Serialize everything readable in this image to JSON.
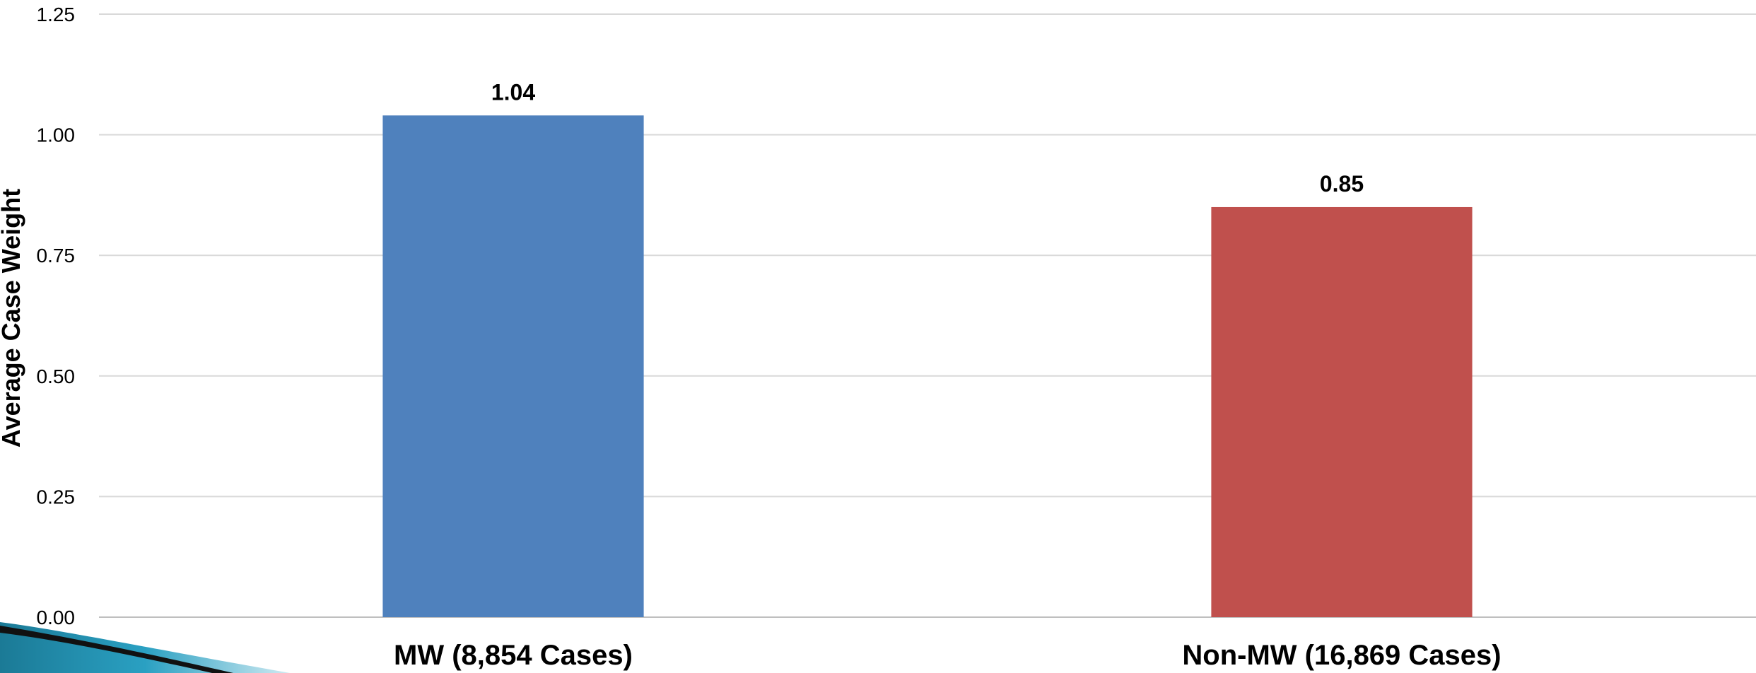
{
  "chart_data": {
    "type": "bar",
    "categories": [
      "MW (8,854 Cases)",
      "Non-MW (16,869 Cases)"
    ],
    "values": [
      1.04,
      0.85
    ],
    "data_labels": [
      "1.04",
      "0.85"
    ],
    "colors": [
      "#4f81bd",
      "#c0504d"
    ],
    "title": "",
    "xlabel": "",
    "ylabel": "Average Case Weight",
    "ylim": [
      0,
      1.25
    ],
    "y_ticks": [
      "0.00",
      "0.25",
      "0.50",
      "0.75",
      "1.00",
      "1.25"
    ],
    "grid": true,
    "legend": "none"
  }
}
